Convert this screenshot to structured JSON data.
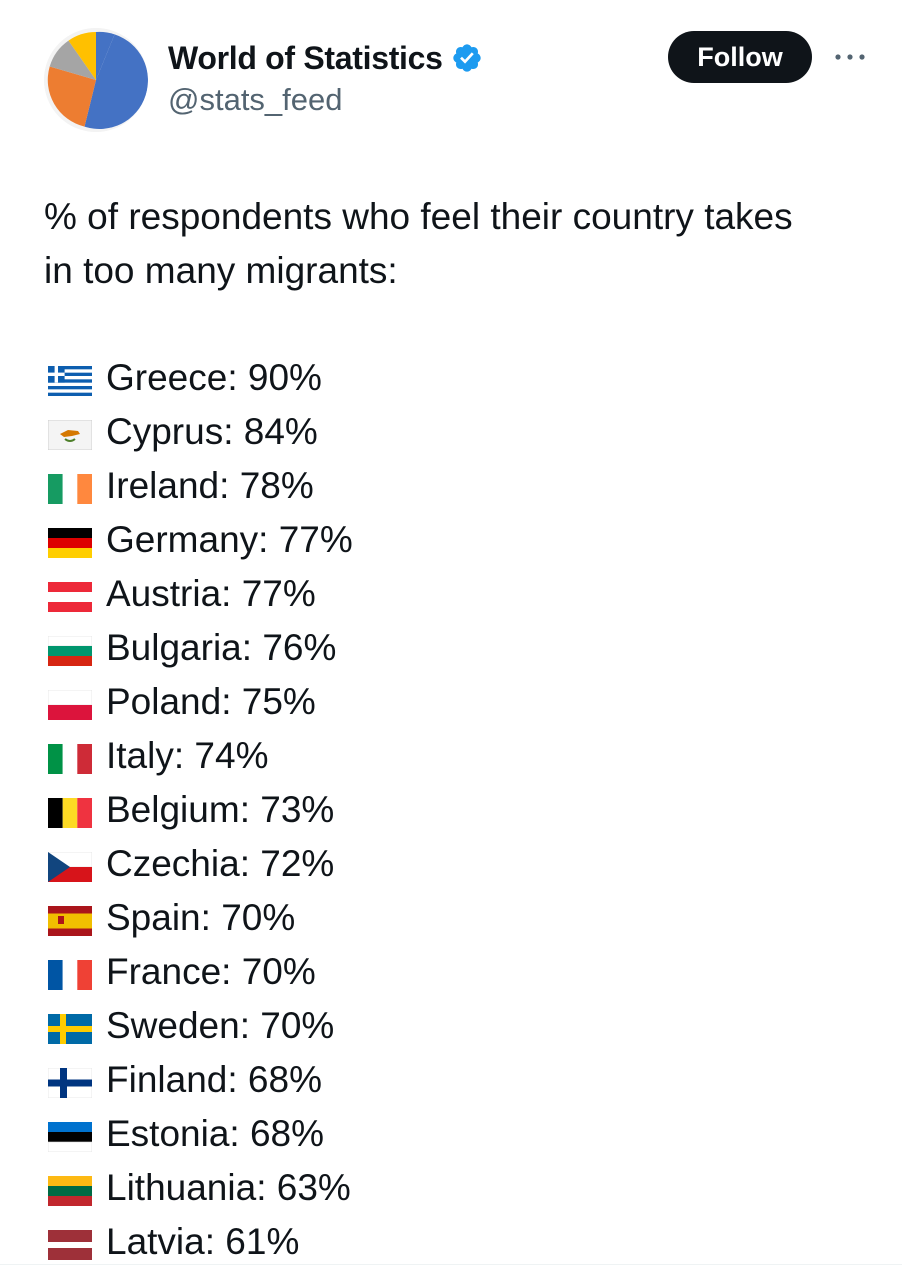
{
  "author": {
    "display_name": "World of Statistics",
    "handle": "@stats_feed",
    "verified_icon": "verified-badge-icon",
    "avatar_icon": "pie-chart-icon",
    "avatar_colors": [
      "#4472c4",
      "#ed7d31",
      "#a5a5a5",
      "#ffc000"
    ]
  },
  "actions": {
    "follow_label": "Follow",
    "more_icon": "more-options-icon"
  },
  "post": {
    "intro_line1": "% of respondents who feel their country takes",
    "intro_line2": "in too many migrants:",
    "items": [
      {
        "country": "Greece",
        "value": "90%",
        "flag_icon": "greece-flag-icon"
      },
      {
        "country": "Cyprus",
        "value": "84%",
        "flag_icon": "cyprus-flag-icon"
      },
      {
        "country": "Ireland",
        "value": "78%",
        "flag_icon": "ireland-flag-icon"
      },
      {
        "country": "Germany",
        "value": "77%",
        "flag_icon": "germany-flag-icon"
      },
      {
        "country": "Austria",
        "value": "77%",
        "flag_icon": "austria-flag-icon"
      },
      {
        "country": "Bulgaria",
        "value": "76%",
        "flag_icon": "bulgaria-flag-icon"
      },
      {
        "country": "Poland",
        "value": "75%",
        "flag_icon": "poland-flag-icon"
      },
      {
        "country": "Italy",
        "value": "74%",
        "flag_icon": "italy-flag-icon"
      },
      {
        "country": "Belgium",
        "value": "73%",
        "flag_icon": "belgium-flag-icon"
      },
      {
        "country": "Czechia",
        "value": "72%",
        "flag_icon": "czechia-flag-icon"
      },
      {
        "country": "Spain",
        "value": "70%",
        "flag_icon": "spain-flag-icon"
      },
      {
        "country": "France",
        "value": "70%",
        "flag_icon": "france-flag-icon"
      },
      {
        "country": "Sweden",
        "value": "70%",
        "flag_icon": "sweden-flag-icon"
      },
      {
        "country": "Finland",
        "value": "68%",
        "flag_icon": "finland-flag-icon"
      },
      {
        "country": "Estonia",
        "value": "68%",
        "flag_icon": "estonia-flag-icon"
      },
      {
        "country": "Lithuania",
        "value": "63%",
        "flag_icon": "lithuania-flag-icon"
      },
      {
        "country": "Latvia",
        "value": "61%",
        "flag_icon": "latvia-flag-icon"
      }
    ]
  },
  "colors": {
    "text": "#0f1419",
    "secondary_text": "#536471",
    "follow_bg": "#0f1419",
    "verified": "#1d9bf0"
  }
}
